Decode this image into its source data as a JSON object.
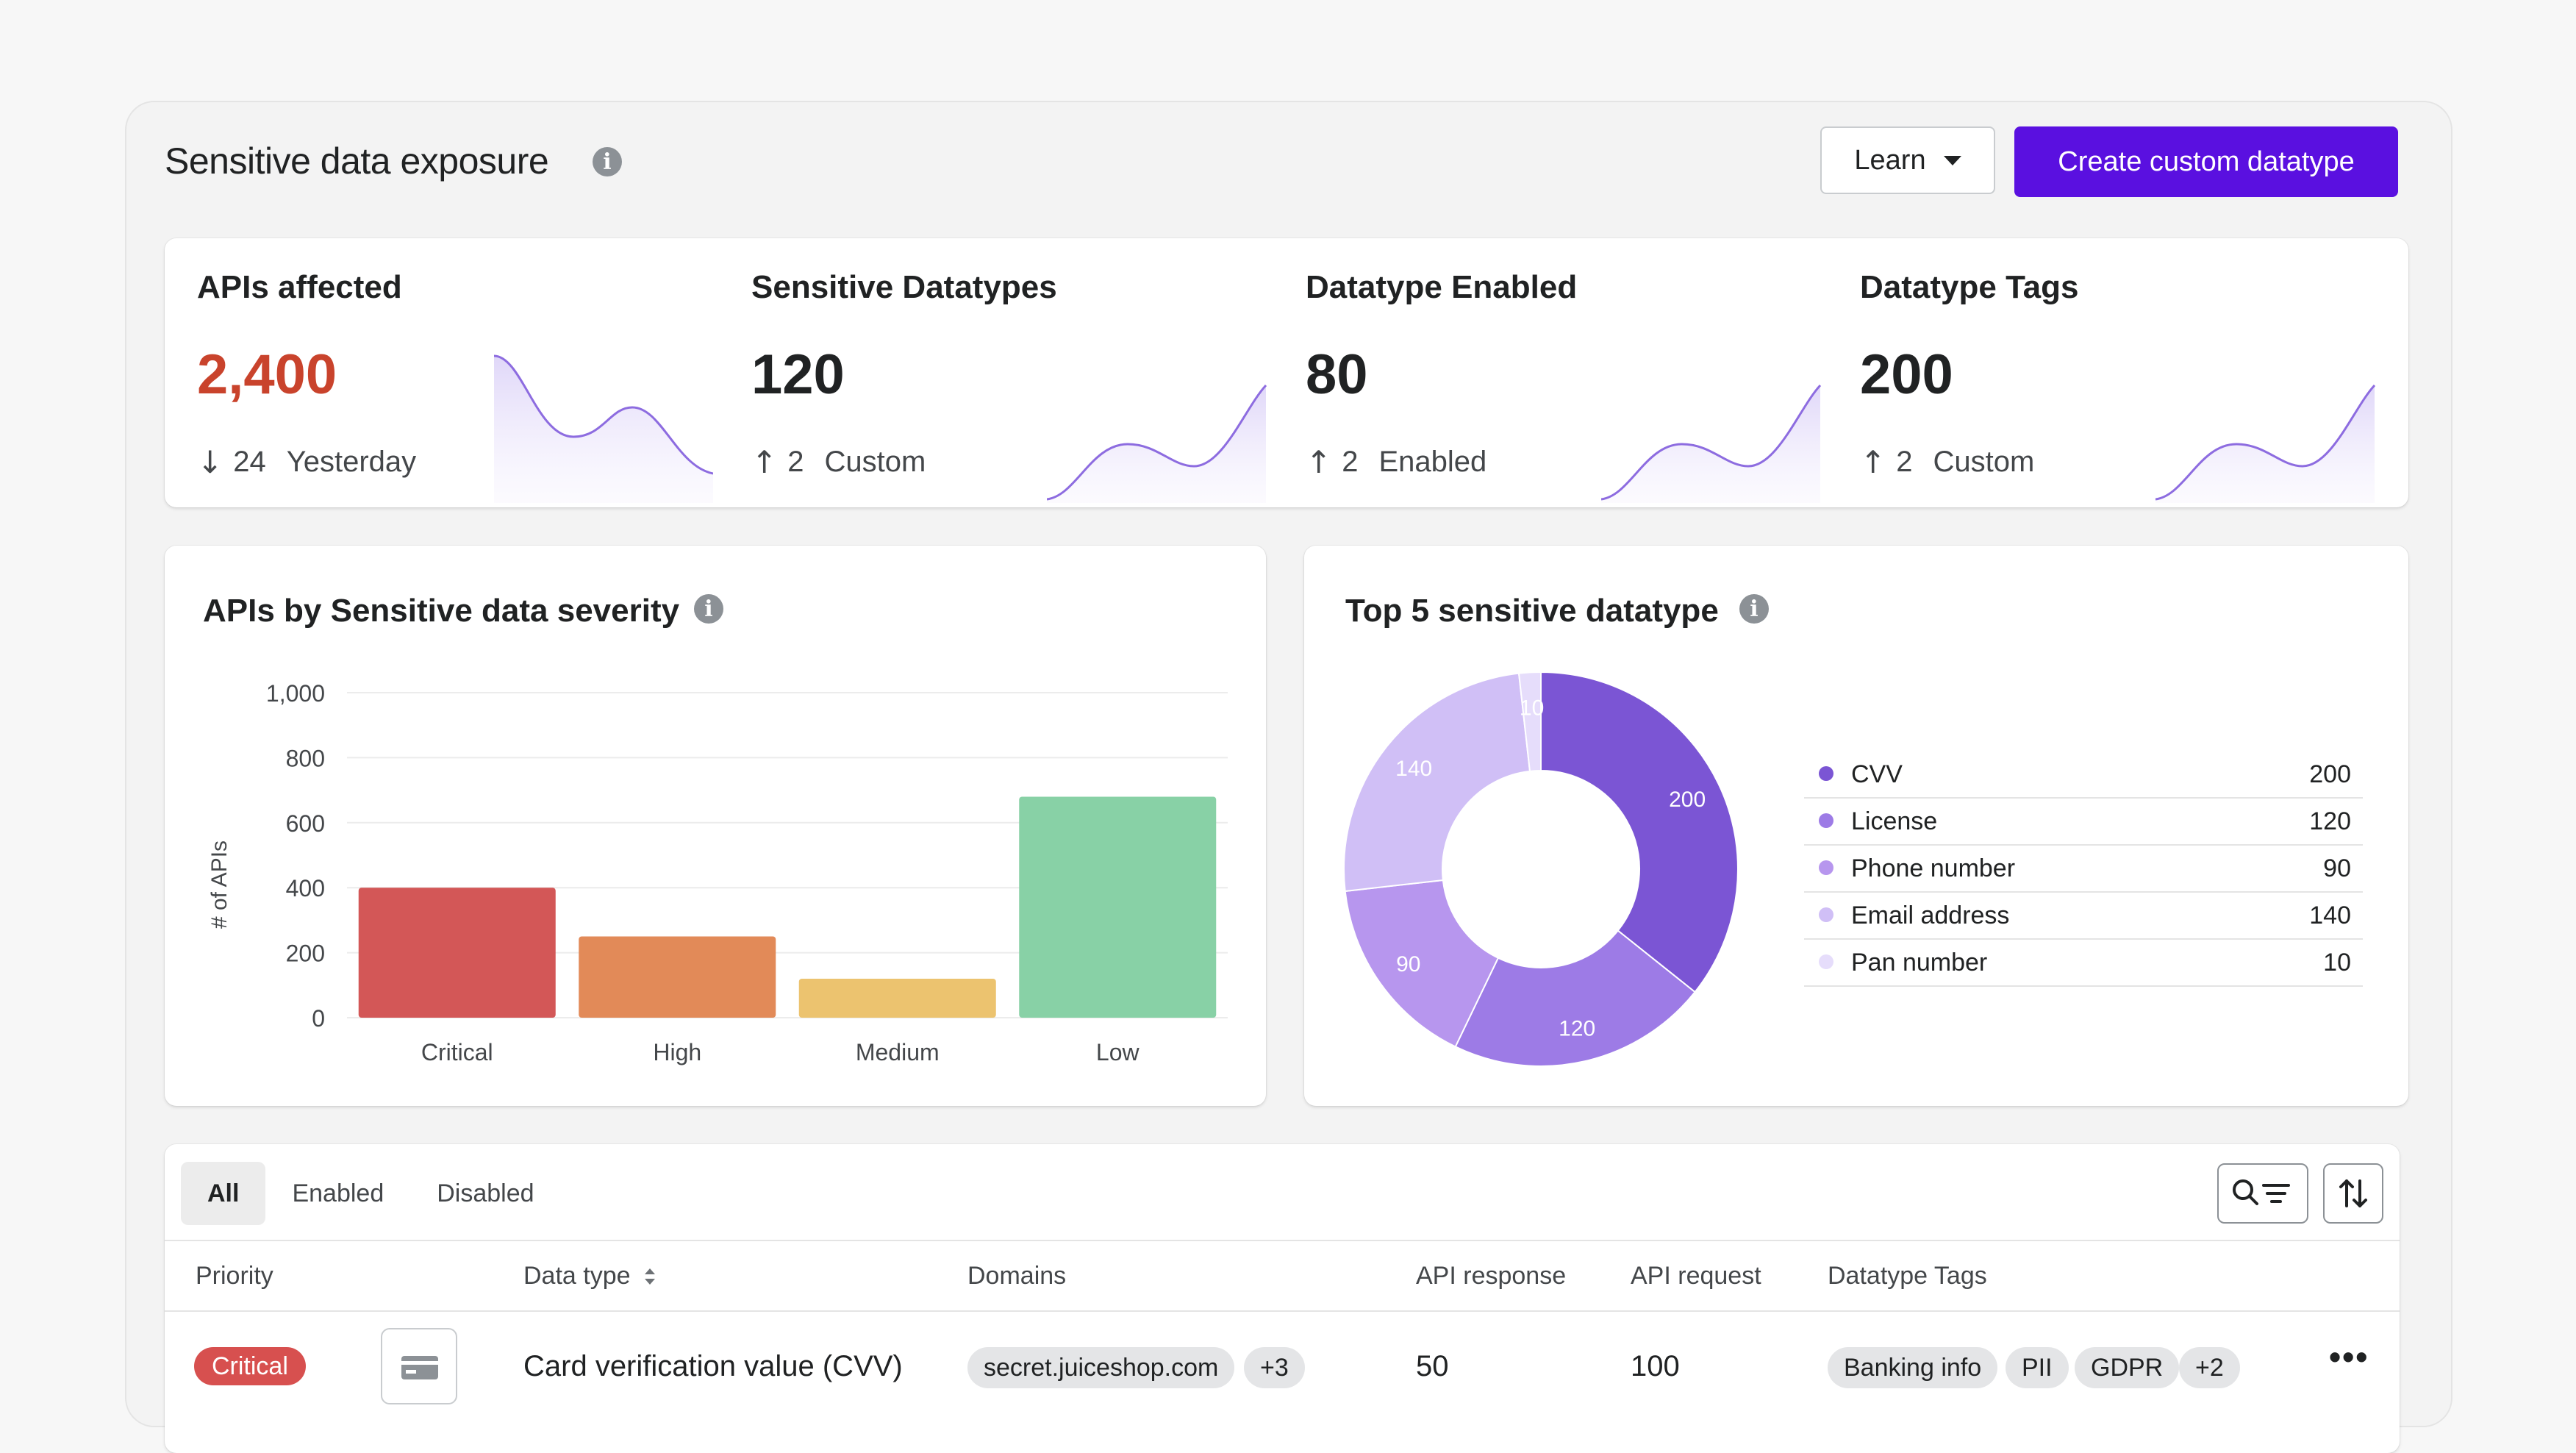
{
  "header": {
    "title": "Sensitive data exposure",
    "learn_label": "Learn",
    "create_label": "Create custom datatype"
  },
  "stats": [
    {
      "label": "APIs affected",
      "value": "2,400",
      "delta": "24",
      "delta_label": "Yesterday",
      "trend": "down",
      "value_color": "#c9432c"
    },
    {
      "label": "Sensitive Datatypes",
      "value": "120",
      "delta": "2",
      "delta_label": "Custom",
      "trend": "up"
    },
    {
      "label": "Datatype Enabled",
      "value": "80",
      "delta": "2",
      "delta_label": "Enabled",
      "trend": "up"
    },
    {
      "label": "Datatype Tags",
      "value": "200",
      "delta": "2",
      "delta_label": "Custom",
      "trend": "up"
    }
  ],
  "severity_chart": {
    "title": "APIs by Sensitive data severity",
    "ylabel": "# of APIs",
    "yticks": [
      "1,000",
      "800",
      "600",
      "400",
      "200",
      "0"
    ]
  },
  "donut_chart": {
    "title": "Top 5 sensitive datatype"
  },
  "chart_data": [
    {
      "type": "bar",
      "title": "APIs by Sensitive data severity",
      "ylabel": "# of APIs",
      "categories": [
        "Critical",
        "High",
        "Medium",
        "Low"
      ],
      "values": [
        400,
        250,
        120,
        680
      ],
      "colors": [
        "#d35757",
        "#e28a58",
        "#ecc36f",
        "#88d1a6"
      ],
      "ylim": [
        0,
        1000
      ],
      "grid": true
    },
    {
      "type": "pie",
      "title": "Top 5 sensitive datatype",
      "categories": [
        "CVV",
        "License",
        "Phone number",
        "Email address",
        "Pan number"
      ],
      "values": [
        200,
        120,
        90,
        140,
        10
      ],
      "colors": [
        "#7b55d4",
        "#9d7be6",
        "#b796ee",
        "#d0bff6",
        "#e6ddfb"
      ],
      "legend": "right"
    }
  ],
  "table": {
    "tabs": [
      "All",
      "Enabled",
      "Disabled"
    ],
    "active_tab": "All",
    "columns": [
      "Priority",
      "Data type",
      "Domains",
      "API response",
      "API request",
      "Datatype Tags"
    ],
    "rows": [
      {
        "priority": "Critical",
        "data_type": "Card verification value (CVV)",
        "domain": "secret.juiceshop.com",
        "domain_more": "+3",
        "api_response": "50",
        "api_request": "100",
        "tags": [
          "Banking info",
          "PII",
          "GDPR"
        ],
        "tags_more": "+2"
      }
    ]
  }
}
